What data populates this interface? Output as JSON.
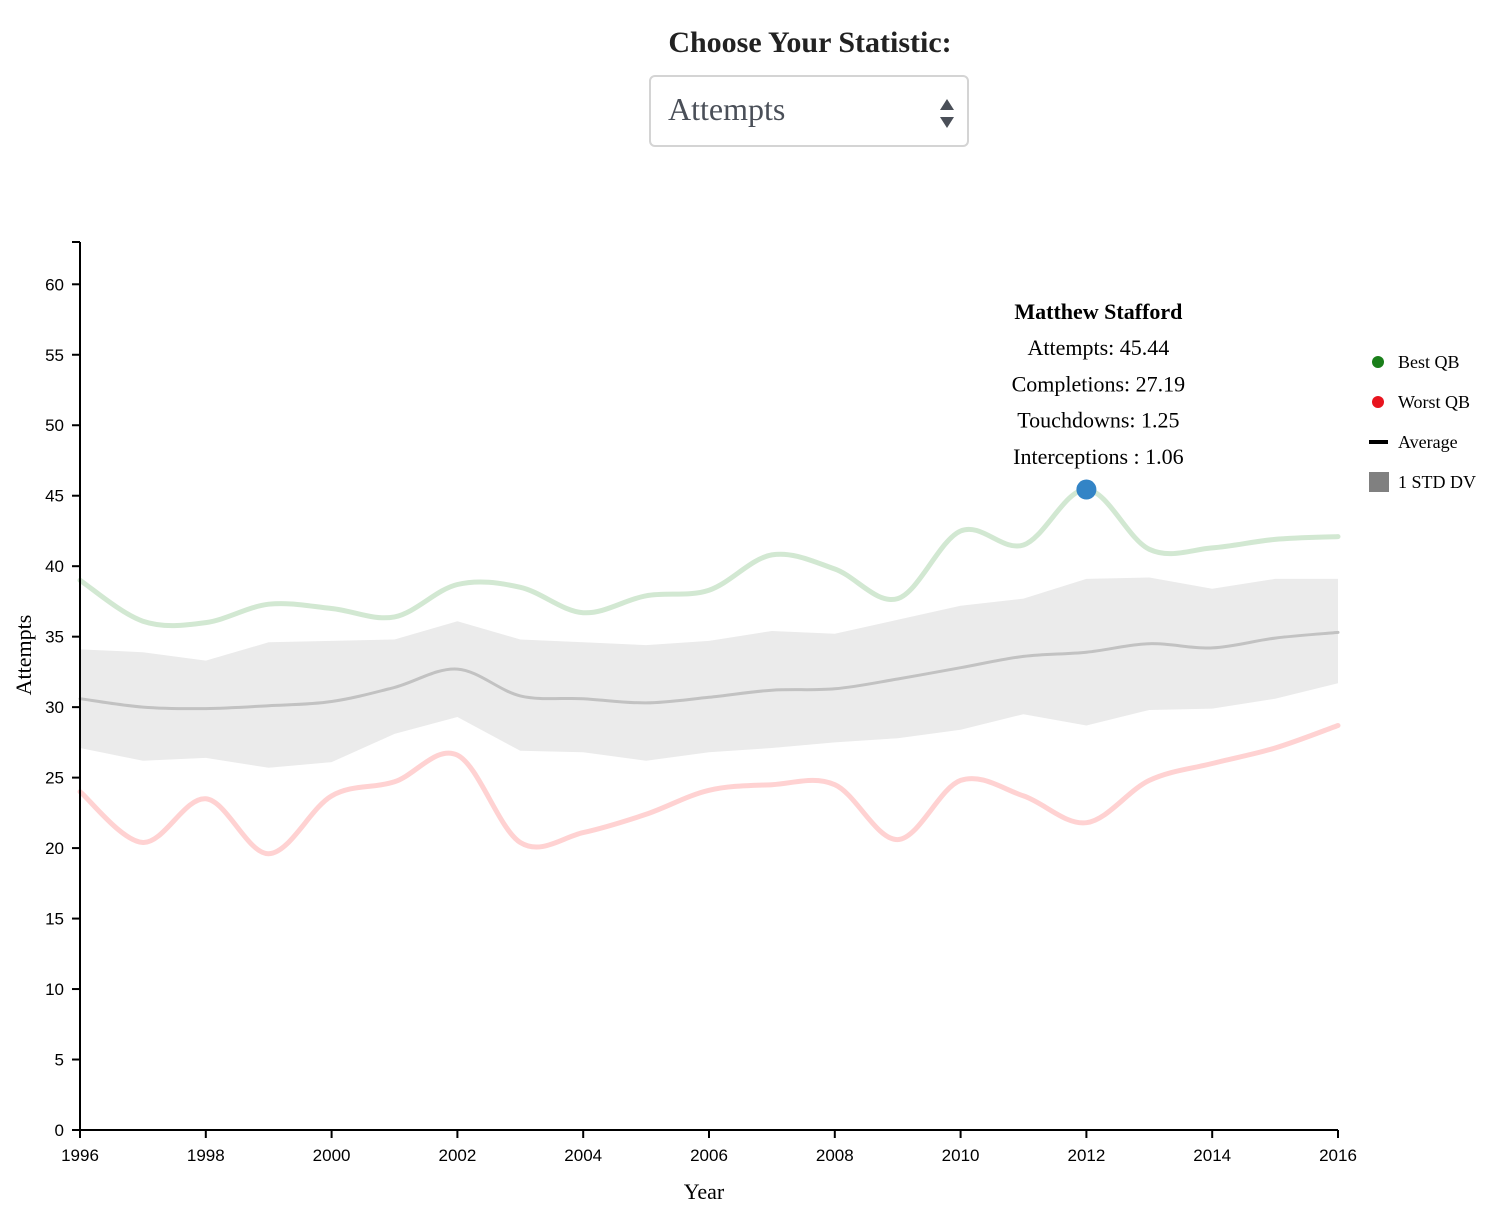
{
  "selector": {
    "label": "Choose Your Statistic:",
    "selected": "Attempts"
  },
  "tooltip": {
    "name": "Matthew Stafford",
    "lines": [
      "Attempts: 45.44",
      "Completions: 27.19",
      "Touchdowns: 1.25",
      "Interceptions : 1.06"
    ]
  },
  "legend": [
    {
      "label": "Best QB",
      "color": "#1a7f1a",
      "shape": "circle"
    },
    {
      "label": "Worst QB",
      "color": "#e8141e",
      "shape": "circle"
    },
    {
      "label": "Average",
      "color": "#000000",
      "shape": "line"
    },
    {
      "label": "1 STD DV",
      "color": "#808080",
      "shape": "square"
    }
  ],
  "chart_data": {
    "type": "line",
    "xlabel": "Year",
    "ylabel": "Attempts",
    "xlim": [
      1996,
      2016
    ],
    "ylim": [
      0,
      63
    ],
    "x_ticks": [
      "1996",
      "1998",
      "2000",
      "2002",
      "2004",
      "2006",
      "2008",
      "2010",
      "2012",
      "2014",
      "2016"
    ],
    "y_ticks": [
      "0",
      "5",
      "10",
      "15",
      "20",
      "25",
      "30",
      "35",
      "40",
      "45",
      "50",
      "55",
      "60"
    ],
    "x": [
      1996,
      1997,
      1998,
      1999,
      2000,
      2001,
      2002,
      2003,
      2004,
      2005,
      2006,
      2007,
      2008,
      2009,
      2010,
      2011,
      2012,
      2013,
      2014,
      2015,
      2016
    ],
    "series": [
      {
        "name": "Best QB",
        "color": "#d2e8d2",
        "values": [
          39.0,
          36.1,
          36.0,
          37.3,
          37.0,
          36.4,
          38.7,
          38.5,
          36.7,
          37.9,
          38.3,
          40.8,
          39.8,
          37.7,
          42.5,
          41.5,
          45.44,
          41.2,
          41.3,
          41.9,
          42.1
        ]
      },
      {
        "name": "Worst QB",
        "color": "#ffd2d2",
        "values": [
          24.0,
          20.4,
          23.5,
          19.6,
          23.7,
          24.7,
          26.6,
          20.4,
          21.1,
          22.4,
          24.1,
          24.5,
          24.5,
          20.6,
          24.8,
          23.7,
          21.8,
          24.8,
          26.0,
          27.1,
          28.7
        ]
      },
      {
        "name": "Average",
        "color": "#c2c2c2",
        "values": [
          30.6,
          30.0,
          29.9,
          30.1,
          30.4,
          31.4,
          32.7,
          30.8,
          30.6,
          30.3,
          30.7,
          31.2,
          31.3,
          32.0,
          32.8,
          33.6,
          33.9,
          34.5,
          34.2,
          34.9,
          35.3
        ]
      },
      {
        "name": "1 STD DV",
        "color": "#ebebeb",
        "upper": [
          34.1,
          33.9,
          33.3,
          34.6,
          34.7,
          34.8,
          36.1,
          34.8,
          34.6,
          34.4,
          34.7,
          35.4,
          35.2,
          36.2,
          37.2,
          37.7,
          39.1,
          39.2,
          38.4,
          39.1,
          39.1
        ],
        "lower": [
          27.1,
          26.2,
          26.4,
          25.7,
          26.1,
          28.1,
          29.3,
          26.9,
          26.8,
          26.2,
          26.8,
          27.1,
          27.5,
          27.8,
          28.4,
          29.5,
          28.7,
          29.8,
          29.9,
          30.6,
          31.7
        ]
      }
    ],
    "highlight": {
      "series": "Best QB",
      "x": 2012,
      "y": 45.44,
      "color": "#3384c6"
    }
  }
}
